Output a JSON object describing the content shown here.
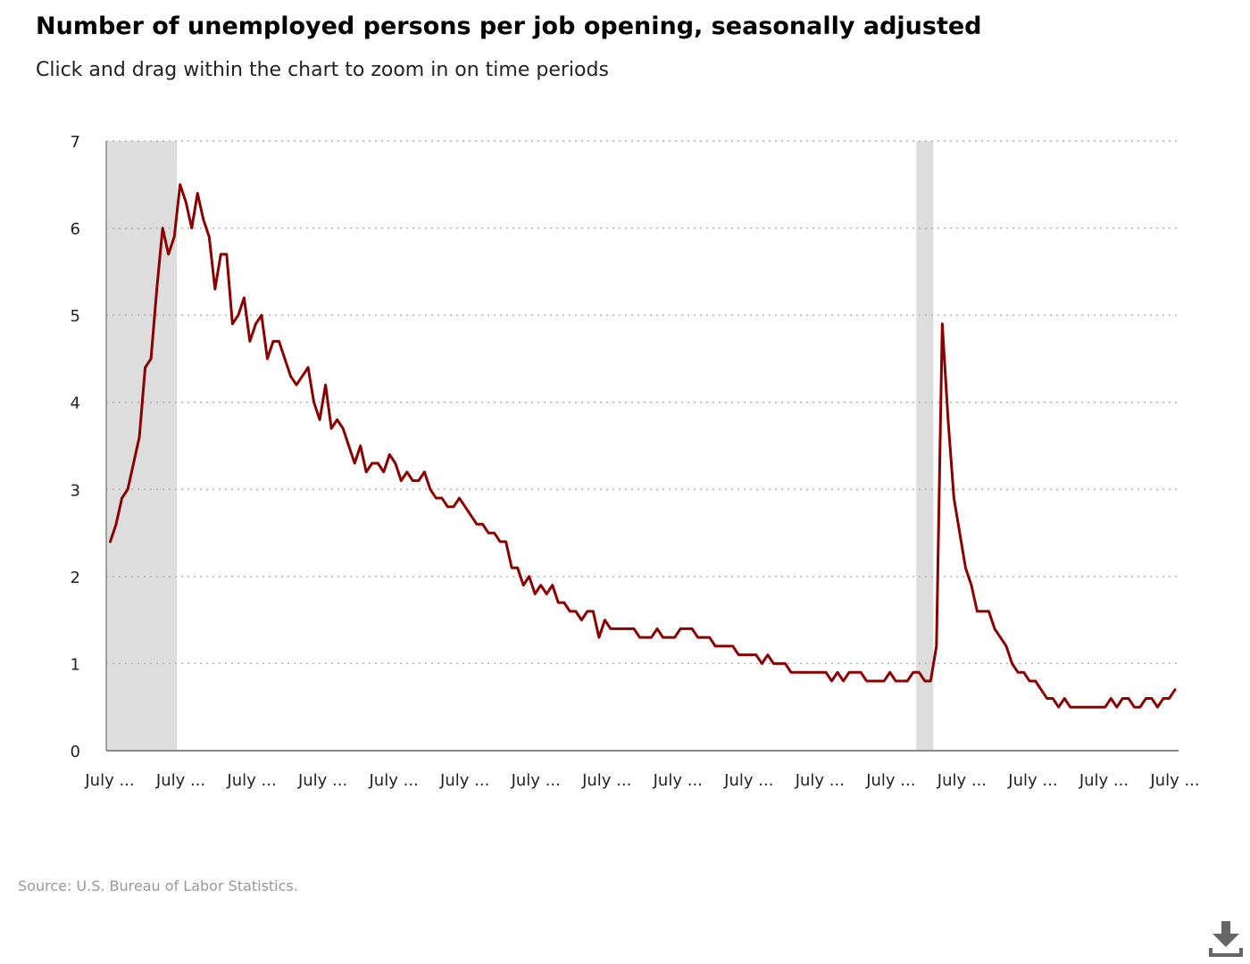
{
  "header": {
    "title": "Number of unemployed persons per job opening, seasonally adjusted",
    "subtitle": "Click and drag within the chart to zoom in on time periods"
  },
  "footer": {
    "source": "Source: U.S. Bureau of Labor Statistics."
  },
  "download": {
    "icon": "download-icon"
  },
  "colors": {
    "line": "#8b0000",
    "recession": "#dddddd",
    "grid": "#b0b0b0",
    "axis": "#888888",
    "text": "#222222"
  },
  "chart_data": {
    "type": "line",
    "title": "Number of unemployed persons per job opening, seasonally adjusted",
    "subtitle": "Click and drag within the chart to zoom in on time periods",
    "xlabel": "",
    "ylabel": "",
    "ylim": [
      0,
      7
    ],
    "y_ticks": [
      0,
      1,
      2,
      3,
      4,
      5,
      6,
      7
    ],
    "x_tick_labels": [
      "July ...",
      "July ...",
      "July ...",
      "July ...",
      "July ...",
      "July ...",
      "July ...",
      "July ...",
      "July ...",
      "July ...",
      "July ...",
      "July ...",
      "July ...",
      "July ...",
      "July ...",
      "July ..."
    ],
    "grid": true,
    "recessions": [
      {
        "start_index": 0,
        "end_index": 11
      },
      {
        "start_index": 139,
        "end_index": 141
      }
    ],
    "series": [
      {
        "values": [
          2.4,
          2.6,
          2.9,
          3.0,
          3.3,
          3.6,
          4.4,
          4.5,
          5.3,
          6.0,
          5.7,
          5.9,
          6.5,
          6.3,
          6.0,
          6.4,
          6.1,
          5.9,
          5.3,
          5.7,
          5.7,
          4.9,
          5.0,
          5.2,
          4.7,
          4.9,
          5.0,
          4.5,
          4.7,
          4.7,
          4.5,
          4.3,
          4.2,
          4.3,
          4.4,
          4.0,
          3.8,
          4.2,
          3.7,
          3.8,
          3.7,
          3.5,
          3.3,
          3.5,
          3.2,
          3.3,
          3.3,
          3.2,
          3.4,
          3.3,
          3.1,
          3.2,
          3.1,
          3.1,
          3.2,
          3.0,
          2.9,
          2.9,
          2.8,
          2.8,
          2.9,
          2.8,
          2.7,
          2.6,
          2.6,
          2.5,
          2.5,
          2.4,
          2.4,
          2.1,
          2.1,
          1.9,
          2.0,
          1.8,
          1.9,
          1.8,
          1.9,
          1.7,
          1.7,
          1.6,
          1.6,
          1.5,
          1.6,
          1.6,
          1.3,
          1.5,
          1.4,
          1.4,
          1.4,
          1.4,
          1.4,
          1.3,
          1.3,
          1.3,
          1.4,
          1.3,
          1.3,
          1.3,
          1.4,
          1.4,
          1.4,
          1.3,
          1.3,
          1.3,
          1.2,
          1.2,
          1.2,
          1.2,
          1.1,
          1.1,
          1.1,
          1.1,
          1.0,
          1.1,
          1.0,
          1.0,
          1.0,
          0.9,
          0.9,
          0.9,
          0.9,
          0.9,
          0.9,
          0.9,
          0.8,
          0.9,
          0.8,
          0.9,
          0.9,
          0.9,
          0.8,
          0.8,
          0.8,
          0.8,
          0.9,
          0.8,
          0.8,
          0.8,
          0.9,
          0.9,
          0.8,
          0.8,
          1.2,
          4.9,
          3.8,
          2.9,
          2.5,
          2.1,
          1.9,
          1.6,
          1.6,
          1.6,
          1.4,
          1.3,
          1.2,
          1.0,
          0.9,
          0.9,
          0.8,
          0.8,
          0.7,
          0.6,
          0.6,
          0.5,
          0.6,
          0.5,
          0.5,
          0.5,
          0.5,
          0.5,
          0.5,
          0.5,
          0.6,
          0.5,
          0.6,
          0.6,
          0.5,
          0.5,
          0.6,
          0.6,
          0.5,
          0.6,
          0.6,
          0.7
        ]
      }
    ]
  }
}
